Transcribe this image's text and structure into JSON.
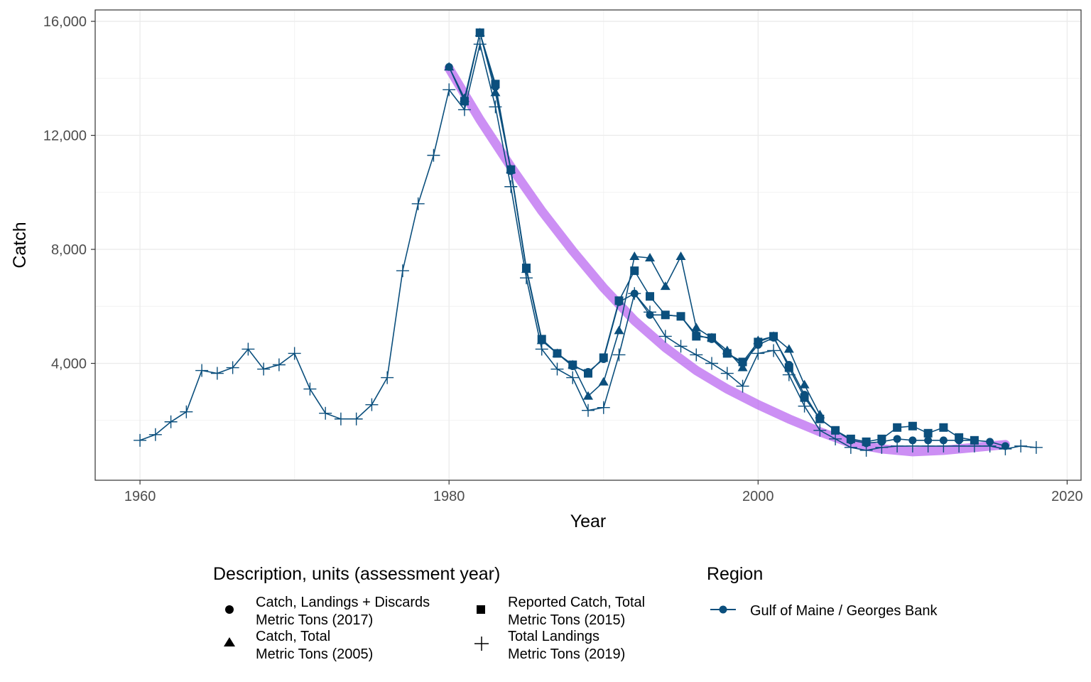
{
  "chart_data": {
    "type": "line",
    "xlabel": "Year",
    "ylabel": "Catch",
    "xlim": [
      1957.1,
      2020.9
    ],
    "ylim": [
      -100,
      16400
    ],
    "x_ticks": [
      1960,
      1980,
      2000,
      2020
    ],
    "y_ticks": [
      4000,
      8000,
      12000,
      16000
    ],
    "x_tick_labels": [
      "1960",
      "1980",
      "2000",
      "2020"
    ],
    "y_tick_labels": [
      "4,000",
      "8,000",
      "12,000",
      "16,000"
    ],
    "grid": true,
    "line_color": "#0b4f7d",
    "trend_color": "#b65ff0",
    "legend": {
      "description": {
        "title": "Description, units (assessment year)",
        "items": [
          {
            "shape": "circle",
            "line1": "Catch, Landings + Discards",
            "line2": "Metric Tons (2017)"
          },
          {
            "shape": "triangle",
            "line1": "Catch, Total",
            "line2": "Metric Tons (2005)"
          },
          {
            "shape": "square",
            "line1": "Reported Catch, Total",
            "line2": "Metric Tons (2015)"
          },
          {
            "shape": "plus",
            "line1": "Total Landings",
            "line2": "Metric Tons (2019)"
          }
        ]
      },
      "region": {
        "title": "Region",
        "items": [
          {
            "label": "Gulf of Maine / Georges Bank"
          }
        ]
      }
    },
    "series": [
      {
        "name": "Total Landings Metric Tons (2019)",
        "shape": "plus",
        "x": [
          1960,
          1961,
          1962,
          1963,
          1964,
          1965,
          1966,
          1967,
          1968,
          1969,
          1970,
          1971,
          1972,
          1973,
          1974,
          1975,
          1976,
          1977,
          1978,
          1979,
          1980,
          1981,
          1982,
          1983,
          1984,
          1985,
          1986,
          1987,
          1988,
          1989,
          1990,
          1991,
          1992,
          1993,
          1994,
          1995,
          1996,
          1997,
          1998,
          1999,
          2000,
          2001,
          2002,
          2003,
          2004,
          2005,
          2006,
          2007,
          2008,
          2009,
          2010,
          2011,
          2012,
          2013,
          2014,
          2015,
          2016,
          2017,
          2018
        ],
        "y": [
          1300,
          1500,
          1950,
          2300,
          3750,
          3650,
          3850,
          4500,
          3800,
          3950,
          4350,
          3100,
          2250,
          2050,
          2050,
          2550,
          3500,
          7250,
          9600,
          11300,
          13600,
          12900,
          15200,
          13000,
          10200,
          7000,
          4500,
          3800,
          3500,
          2350,
          2450,
          4300,
          6450,
          5800,
          4950,
          4600,
          4300,
          4000,
          3650,
          3200,
          4350,
          4450,
          3600,
          2500,
          1650,
          1350,
          1050,
          950,
          1050,
          1100,
          1100,
          1100,
          1100,
          1100,
          1100,
          1100,
          1000,
          1100,
          1050
        ]
      },
      {
        "name": "Reported Catch, Total Metric Tons (2015)",
        "shape": "square",
        "x": [
          1981,
          1982,
          1983,
          1984,
          1985,
          1986,
          1987,
          1988,
          1989,
          1990,
          1991,
          1992,
          1993,
          1994,
          1995,
          1996,
          1997,
          1998,
          1999,
          2000,
          2001,
          2002,
          2003,
          2004,
          2005,
          2006,
          2007,
          2008,
          2009,
          2010,
          2011,
          2012,
          2013,
          2014
        ],
        "y": [
          13200,
          15600,
          13800,
          10800,
          7350,
          4850,
          4350,
          3950,
          3650,
          4200,
          6200,
          7250,
          6350,
          5700,
          5650,
          4950,
          4900,
          4350,
          4050,
          4750,
          4950,
          3850,
          2800,
          2050,
          1650,
          1350,
          1250,
          1350,
          1750,
          1800,
          1550,
          1750,
          1400,
          1300
        ]
      },
      {
        "name": "Catch, Total Metric Tons (2005)",
        "shape": "triangle",
        "x": [
          1980,
          1981,
          1982,
          1983,
          1984,
          1985,
          1986,
          1987,
          1988,
          1989,
          1990,
          1991,
          1992,
          1993,
          1994,
          1995,
          1996,
          1997,
          1998,
          1999,
          2000,
          2001,
          2002,
          2003,
          2004
        ],
        "y": [
          14400,
          13300,
          15600,
          13500,
          10800,
          7300,
          4800,
          4350,
          3950,
          2850,
          3350,
          5150,
          7750,
          7700,
          6700,
          7750,
          5250,
          4900,
          4450,
          3850,
          4800,
          4950,
          4500,
          3250,
          2200
        ]
      },
      {
        "name": "Catch, Landings + Discards Metric Tons (2017)",
        "shape": "circle",
        "x": [
          1980,
          1981,
          1982,
          1983,
          1984,
          1985,
          1986,
          1987,
          1988,
          1989,
          1990,
          1991,
          1992,
          1993,
          1994,
          1995,
          1996,
          1997,
          1998,
          1999,
          2000,
          2001,
          2002,
          2003,
          2004,
          2005,
          2006,
          2007,
          2008,
          2009,
          2010,
          2011,
          2012,
          2013,
          2014,
          2015,
          2016
        ],
        "y": [
          14400,
          13200,
          15600,
          13700,
          10750,
          7300,
          4800,
          4350,
          3900,
          3700,
          4150,
          6150,
          6450,
          5700,
          5700,
          5650,
          5000,
          4850,
          4350,
          4000,
          4650,
          4900,
          3950,
          2900,
          2050,
          1650,
          1300,
          1200,
          1250,
          1350,
          1300,
          1300,
          1300,
          1300,
          1300,
          1250,
          1100
        ]
      }
    ],
    "trend": {
      "x": [
        1980,
        1982,
        1984,
        1986,
        1988,
        1990,
        1992,
        1994,
        1996,
        1998,
        2000,
        2002,
        2004,
        2006,
        2008,
        2010,
        2012,
        2014,
        2016
      ],
      "y": [
        14350,
        12550,
        10900,
        9350,
        7950,
        6650,
        5500,
        4550,
        3750,
        3100,
        2550,
        2050,
        1600,
        1200,
        1000,
        900,
        950,
        1050,
        1150
      ]
    }
  }
}
